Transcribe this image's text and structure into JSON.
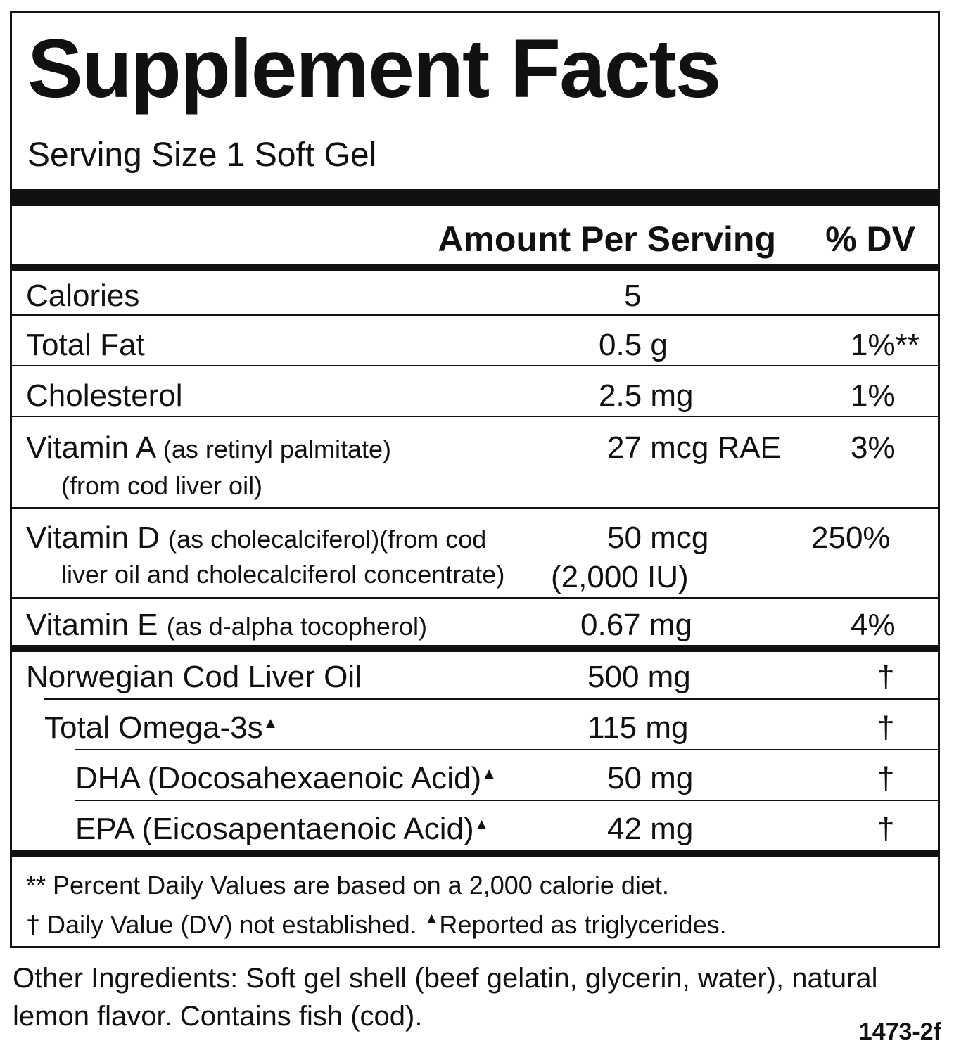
{
  "label": {
    "title": "Supplement Facts",
    "serving_size": "Serving Size 1 Soft Gel",
    "header_amount": "Amount Per Serving",
    "header_dv": "% DV"
  },
  "nutrients": [
    {
      "name": "Calories",
      "detail": "",
      "detail2": "",
      "amount": "5",
      "amount2": "",
      "dv": ""
    },
    {
      "name": "Total Fat",
      "detail": "",
      "detail2": "",
      "amount": "0.5 g",
      "amount2": "",
      "dv": "1%**"
    },
    {
      "name": "Cholesterol",
      "detail": "",
      "detail2": "",
      "amount": "2.5 mg",
      "amount2": "",
      "dv": "1%"
    },
    {
      "name": "Vitamin A",
      "detail": "(as retinyl palmitate)",
      "detail2": "(from cod liver oil)",
      "amount": "27 mcg RAE",
      "amount2": "",
      "dv": "3%"
    },
    {
      "name": "Vitamin D",
      "detail": "(as cholecalciferol)(from cod",
      "detail2": "liver oil and cholecalciferol concentrate)",
      "amount": "50 mcg",
      "amount2": "(2,000 IU)",
      "dv": "250%"
    },
    {
      "name": "Vitamin E",
      "detail": "(as d-alpha tocopherol)",
      "detail2": "",
      "amount": "0.67 mg",
      "amount2": "",
      "dv": "4%"
    }
  ],
  "oils": [
    {
      "name": "Norwegian Cod Liver Oil",
      "mark": "",
      "amount": "500 mg",
      "dv": "†"
    },
    {
      "name": "Total Omega-3s",
      "mark": "▲",
      "amount": "115 mg",
      "dv": "†"
    },
    {
      "name": "DHA (Docosahexaenoic Acid)",
      "mark": "▲",
      "amount": "50 mg",
      "dv": "†"
    },
    {
      "name": "EPA (Eicosapentaenoic Acid)",
      "mark": "▲",
      "amount": "42 mg",
      "dv": "†"
    }
  ],
  "footnotes": {
    "line1": "** Percent Daily Values are based on a 2,000 calorie diet.",
    "line2a": "† Daily Value (DV) not established.",
    "line2_mark": "▲",
    "line2b": "Reported as triglycerides."
  },
  "other_ingredients": "Other Ingredients:  Soft gel shell (beef gelatin, glycerin, water), natural lemon flavor.  Contains fish (cod).",
  "lot_code": "1473-2f"
}
